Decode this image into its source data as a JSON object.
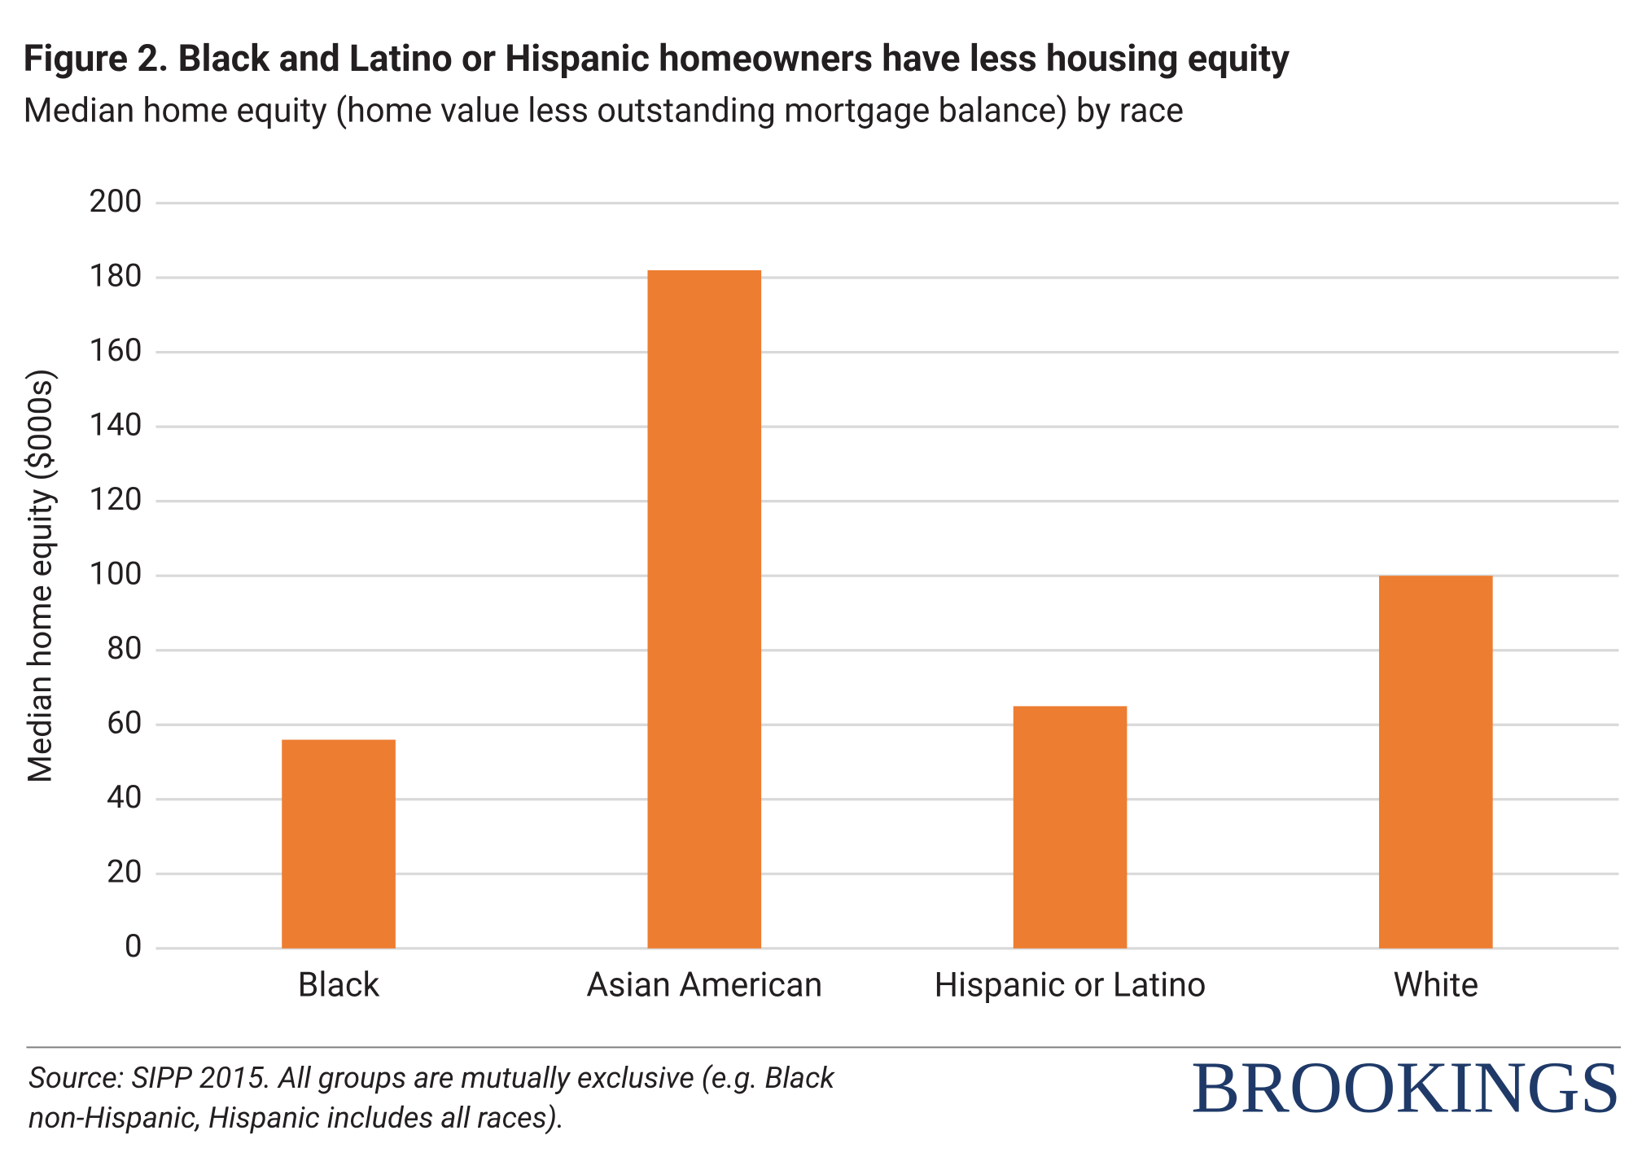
{
  "chart_data": {
    "type": "bar",
    "title": "Figure 2. Black and Latino or Hispanic homeowners have less housing equity",
    "subtitle": "Median home equity (home value less outstanding mortgage balance) by race",
    "y_label": "Median home equity ($000s)",
    "categories": [
      "Black",
      "Asian American",
      "Hispanic or Latino",
      "White"
    ],
    "values": [
      56,
      182,
      65,
      100
    ],
    "color": "#ed7d31",
    "ylim": [
      0,
      200
    ],
    "yticks": [
      0,
      20,
      40,
      60,
      80,
      100,
      120,
      140,
      160,
      180,
      200
    ],
    "grid": true,
    "source_lines": [
      "Source: SIPP 2015. All groups are mutually exclusive (e.g. Black",
      "non-Hispanic, Hispanic includes all races)."
    ],
    "logo": "BROOKINGS"
  }
}
